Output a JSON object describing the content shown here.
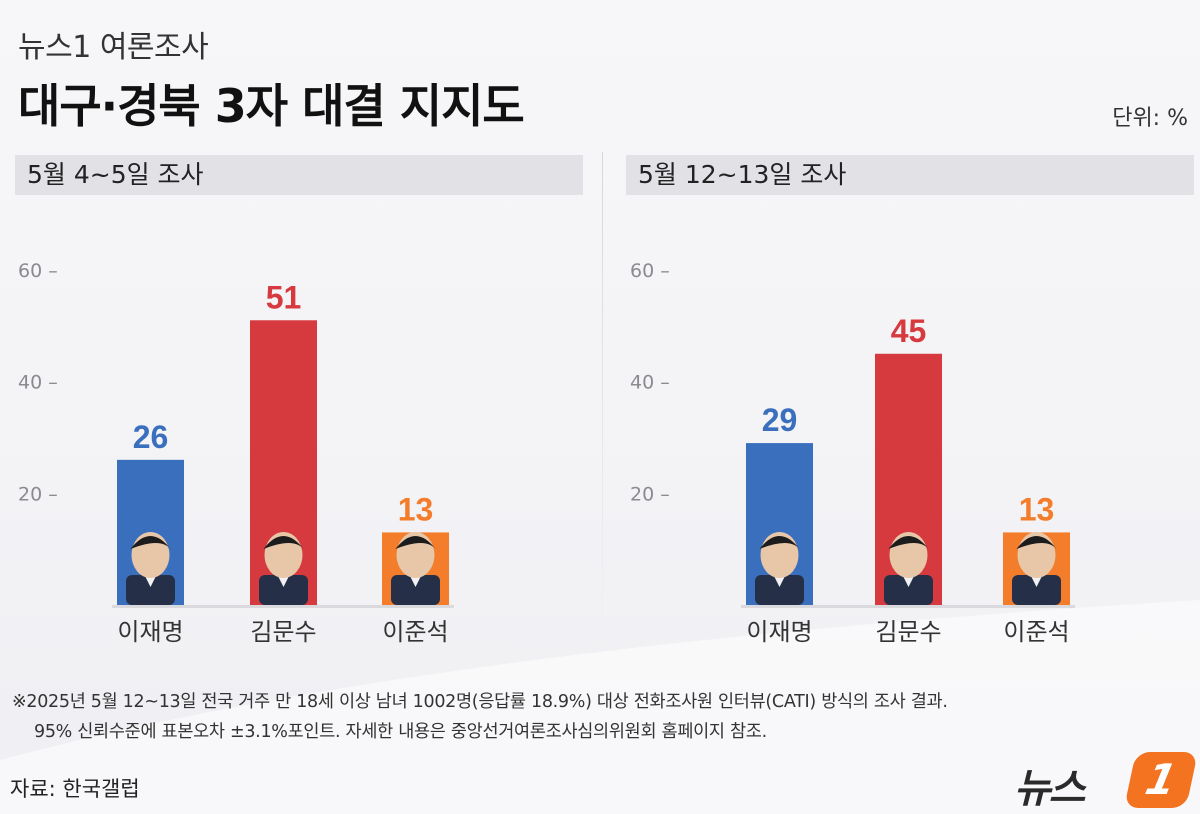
{
  "header": {
    "kicker": "뉴스1 여론조사",
    "title": "대구·경북 3자 대결 지지도",
    "unit": "단위: %"
  },
  "chart_data": [
    {
      "type": "bar",
      "title": "5월 4~5일 조사",
      "categories": [
        "이재명",
        "김문수",
        "이준석"
      ],
      "values": [
        26,
        51,
        13
      ],
      "colors": [
        "#3a6fbe",
        "#d63a3f",
        "#f37d2a"
      ],
      "yticks": [
        20,
        40,
        60
      ],
      "ylim": [
        0,
        60
      ]
    },
    {
      "type": "bar",
      "title": "5월 12~13일 조사",
      "categories": [
        "이재명",
        "김문수",
        "이준석"
      ],
      "values": [
        29,
        45,
        13
      ],
      "colors": [
        "#3a6fbe",
        "#d63a3f",
        "#f37d2a"
      ],
      "yticks": [
        20,
        40,
        60
      ],
      "ylim": [
        0,
        60
      ]
    }
  ],
  "notes": {
    "line1": "※2025년 5월 12~13일 전국 거주 만 18세 이상 남녀 1002명(응답률 18.9%) 대상 전화조사원 인터뷰(CATI) 방식의 조사 결과.",
    "line2": "95% 신뢰수준에 표본오차 ±3.1%포인트. 자세한 내용은 중앙선거여론조사심의위원회 홈페이지 참조."
  },
  "source": "자료: 한국갤럽",
  "logo": {
    "text": "뉴스",
    "mark": "1"
  }
}
